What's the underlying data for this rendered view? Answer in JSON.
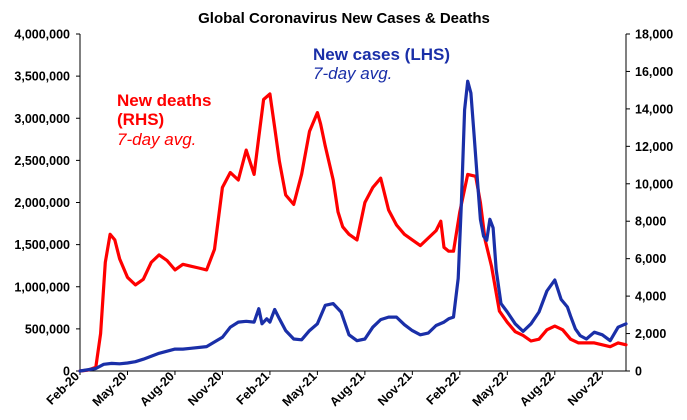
{
  "chart_data": {
    "type": "line",
    "title": "Global Coronavirus New Cases & Deaths",
    "colors": {
      "cases": "#1a2fa8",
      "deaths": "#ff0000",
      "axis": "#000000"
    },
    "x_ticks": [
      "Feb-20",
      "May-20",
      "Aug-20",
      "Nov-20",
      "Feb-21",
      "May-21",
      "Aug-21",
      "Nov-21",
      "Feb-22",
      "May-22",
      "Aug-22",
      "Nov-22"
    ],
    "x_range_months": [
      0,
      34.5
    ],
    "y_left": {
      "ylim": [
        0,
        4000000
      ],
      "ticks": [
        "0",
        "500,000",
        "1,000,000",
        "1,500,000",
        "2,000,000",
        "2,500,000",
        "3,000,000",
        "3,500,000",
        "4,000,000"
      ]
    },
    "y_right": {
      "ylim": [
        0,
        18000
      ],
      "ticks": [
        "0",
        "2,000",
        "4,000",
        "6,000",
        "8,000",
        "10,000",
        "12,000",
        "14,000",
        "16,000",
        "18,000"
      ]
    },
    "annotations": {
      "cases_line1": "New cases (LHS)",
      "cases_line2": "7-day avg.",
      "deaths_line1": "New deaths",
      "deaths_line2": "(RHS)",
      "deaths_line3": "7-day avg."
    },
    "series": [
      {
        "name": "New cases (LHS) 7-day avg.",
        "axis": "left",
        "x_months": [
          0,
          1,
          1.5,
          2,
          2.5,
          3,
          3.5,
          4,
          5,
          6,
          6.5,
          7,
          8,
          9,
          9.5,
          10,
          10.5,
          11,
          11.3,
          11.5,
          11.8,
          12,
          12.3,
          12.6,
          13,
          13.5,
          14,
          14.5,
          15,
          15.5,
          16,
          16.5,
          17,
          17.5,
          18,
          18.5,
          19,
          19.5,
          20,
          20.5,
          21,
          21.5,
          22,
          22.5,
          23,
          23.3,
          23.6,
          23.9,
          24.1,
          24.3,
          24.5,
          24.7,
          24.9,
          25.1,
          25.3,
          25.5,
          25.7,
          25.9,
          26.1,
          26.3,
          26.6,
          27,
          27.5,
          28,
          28.5,
          29,
          29.5,
          30,
          30.4,
          30.8,
          31,
          31.3,
          31.6,
          32,
          32.5,
          33,
          33.5,
          34,
          34.5
        ],
        "values": [
          0,
          30000,
          80000,
          90000,
          85000,
          95000,
          110000,
          140000,
          210000,
          260000,
          260000,
          270000,
          290000,
          400000,
          520000,
          580000,
          590000,
          580000,
          740000,
          560000,
          620000,
          580000,
          730000,
          620000,
          480000,
          380000,
          370000,
          480000,
          560000,
          780000,
          800000,
          700000,
          430000,
          360000,
          380000,
          520000,
          610000,
          640000,
          640000,
          550000,
          480000,
          430000,
          450000,
          540000,
          580000,
          620000,
          640000,
          1100000,
          2000000,
          3100000,
          3440000,
          3300000,
          2800000,
          2300000,
          1800000,
          1600000,
          1550000,
          1800000,
          1700000,
          1200000,
          800000,
          700000,
          560000,
          470000,
          560000,
          700000,
          950000,
          1080000,
          850000,
          760000,
          650000,
          500000,
          420000,
          380000,
          460000,
          430000,
          360000,
          520000,
          560000
        ]
      },
      {
        "name": "New deaths (RHS) 7-day avg.",
        "axis": "right",
        "x_months": [
          0,
          0.5,
          1,
          1.3,
          1.6,
          1.9,
          2.2,
          2.5,
          3,
          3.5,
          4,
          4.5,
          5,
          5.5,
          6,
          6.5,
          7,
          7.5,
          8,
          8.5,
          9,
          9.5,
          10,
          10.5,
          11,
          11.3,
          11.6,
          12,
          12.3,
          12.6,
          13,
          13.5,
          14,
          14.5,
          15,
          15.2,
          15.5,
          16,
          16.3,
          16.6,
          17,
          17.5,
          18,
          18.5,
          19,
          19.5,
          20,
          20.5,
          21,
          21.5,
          22,
          22.5,
          22.8,
          23,
          23.3,
          23.6,
          24,
          24.5,
          25,
          25.3,
          25.6,
          26,
          26.5,
          27,
          27.5,
          28,
          28.5,
          29,
          29.5,
          30,
          30.5,
          31,
          31.5,
          32,
          32.5,
          33,
          33.5,
          34,
          34.5
        ],
        "values": [
          0,
          50,
          200,
          2000,
          5800,
          7300,
          7000,
          6000,
          5000,
          4600,
          4900,
          5800,
          6200,
          5900,
          5400,
          5700,
          5600,
          5500,
          5400,
          6500,
          9800,
          10600,
          10200,
          11800,
          10500,
          12500,
          14500,
          14800,
          13000,
          11200,
          9400,
          8900,
          10500,
          12800,
          13800,
          13200,
          12000,
          10200,
          8500,
          7700,
          7300,
          7000,
          9000,
          9800,
          10300,
          8600,
          7800,
          7300,
          7000,
          6700,
          7100,
          7500,
          8000,
          6600,
          6400,
          6400,
          8500,
          10500,
          10400,
          9000,
          7000,
          5600,
          3200,
          2600,
          2100,
          1900,
          1600,
          1700,
          2200,
          2400,
          2200,
          1700,
          1500,
          1500,
          1500,
          1400,
          1300,
          1500,
          1400
        ]
      }
    ]
  }
}
